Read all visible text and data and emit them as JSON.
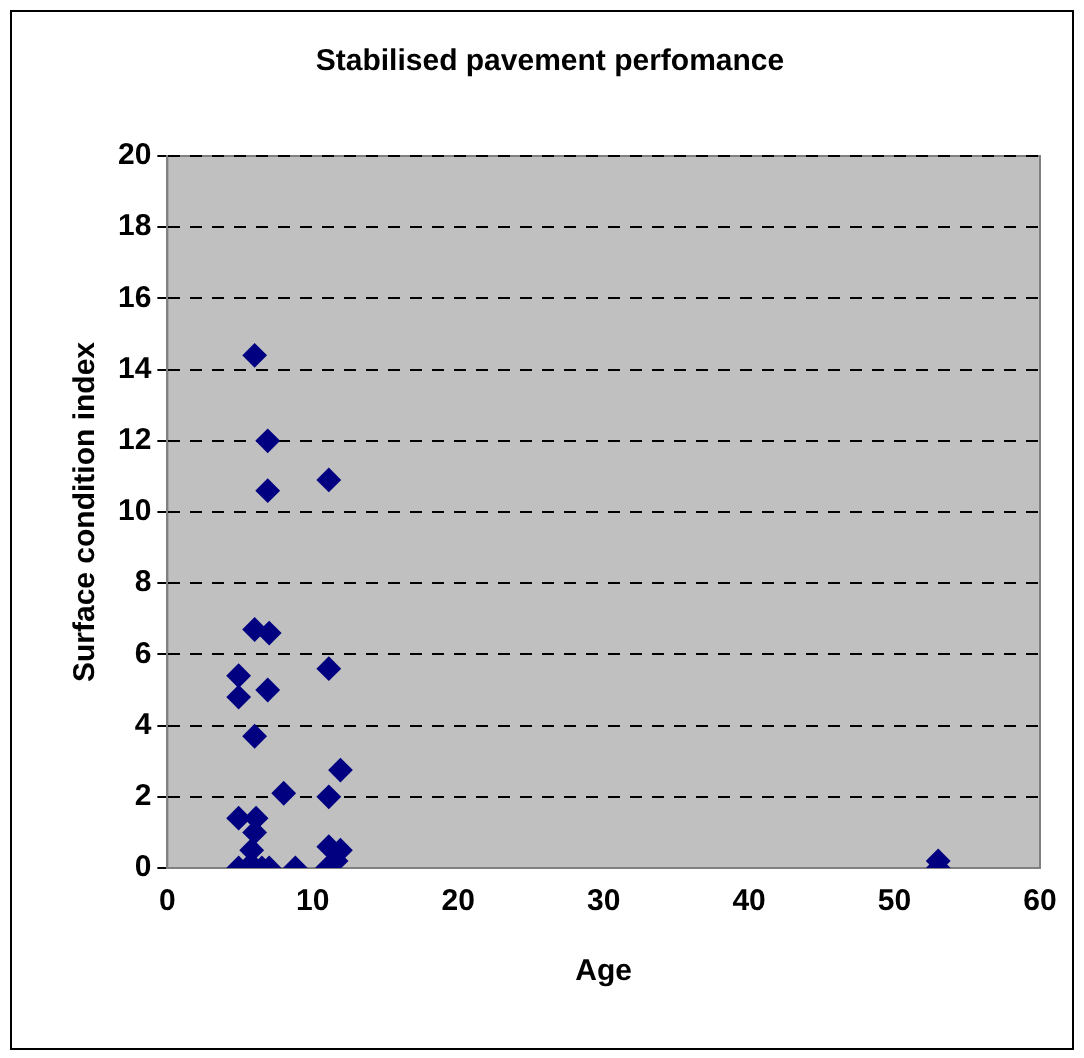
{
  "chart_data": {
    "type": "scatter",
    "title": "Stabilised pavement perfomance",
    "xlabel": "Age",
    "ylabel": "Surface condition index",
    "series": [
      {
        "color": "#000080",
        "x": [
          6,
          6.9,
          6.9,
          11.1,
          6,
          7,
          11.1,
          4.9,
          4.9,
          6.9,
          6,
          8,
          11.9,
          11.1,
          4.9,
          6.1,
          6,
          5.8,
          11.1,
          11.9,
          4.9,
          5.5,
          6,
          6.5,
          7,
          8.8,
          11,
          11.6,
          53,
          53
        ],
        "values": [
          14.4,
          12,
          10.6,
          10.9,
          6.7,
          6.6,
          5.6,
          5.4,
          4.8,
          5,
          3.7,
          2.1,
          2.75,
          2,
          1.4,
          1.4,
          1,
          0.5,
          0.6,
          0.5,
          0,
          0,
          0,
          0,
          0,
          0,
          0,
          0.2,
          0.2,
          0
        ]
      }
    ],
    "xlim": [
      0,
      60
    ],
    "xticks": [
      0,
      10,
      20,
      30,
      40,
      50,
      60
    ],
    "ylim": [
      0,
      20
    ],
    "yticks": [
      0,
      2,
      4,
      6,
      8,
      10,
      12,
      14,
      16,
      18,
      20
    ],
    "grid": "y",
    "legend": false,
    "marker": "diamond"
  }
}
